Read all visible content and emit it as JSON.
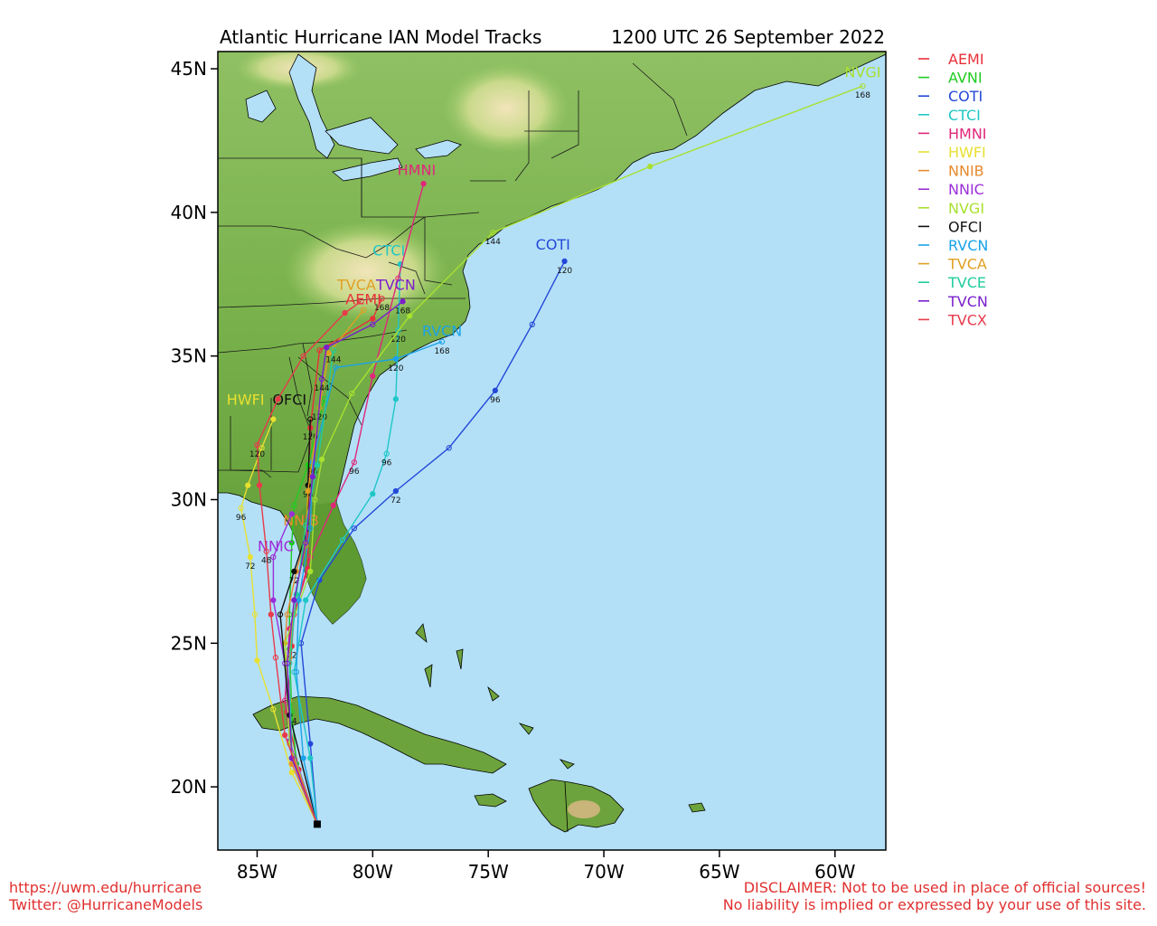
{
  "header": {
    "title": "Atlantic Hurricane IAN Model Tracks",
    "timestamp": "1200 UTC 26 September 2022"
  },
  "footer": {
    "url": "https://uwm.edu/hurricane",
    "twitter": "Twitter: @HurricaneModels",
    "disclaimer_line1": "DISCLAIMER: Not to be used in place of official sources!",
    "disclaimer_line2": "No liability is implied or expressed by your use of this site."
  },
  "colors": {
    "ocean": "#b3e0f7",
    "land": "#6fa53f",
    "border": "#000000",
    "footer_text": "#e03030"
  },
  "chart_data": {
    "type": "scatter",
    "xlim": [
      -86.7,
      -57.8
    ],
    "ylim": [
      17.8,
      45.6
    ],
    "x_ticks": [
      {
        "value": -85,
        "label": "85W"
      },
      {
        "value": -80,
        "label": "80W"
      },
      {
        "value": -75,
        "label": "75W"
      },
      {
        "value": -70,
        "label": "70W"
      },
      {
        "value": -65,
        "label": "65W"
      },
      {
        "value": -60,
        "label": "60W"
      }
    ],
    "y_ticks": [
      {
        "value": 20,
        "label": "20N"
      },
      {
        "value": 25,
        "label": "25N"
      },
      {
        "value": 30,
        "label": "30N"
      },
      {
        "value": 35,
        "label": "35N"
      },
      {
        "value": 40,
        "label": "40N"
      },
      {
        "value": 45,
        "label": "45N"
      }
    ],
    "origin": {
      "lon": -82.4,
      "lat": 18.7
    },
    "legend_position": "right",
    "series": [
      {
        "name": "AEMI",
        "color": "#e8303a",
        "label_lon": -80.4,
        "label_lat": 36.8,
        "points": [
          [
            -82.4,
            18.7
          ],
          [
            -83.2,
            20.6
          ],
          [
            -83.7,
            22.6
          ],
          [
            -83.5,
            24.9
          ],
          [
            -83.4,
            26.0
          ],
          [
            -82.8,
            27.6
          ],
          [
            -82.8,
            29.4
          ],
          [
            -82.7,
            32.5
          ],
          [
            -82.3,
            35.2
          ],
          [
            -80.0,
            36.3
          ],
          [
            -79.6,
            37.0
          ]
        ],
        "labels": [
          [
            -83.5,
            24.9,
            "72"
          ],
          [
            -82.7,
            32.5,
            "120"
          ],
          [
            -79.6,
            37.0,
            "168"
          ]
        ]
      },
      {
        "name": "AVNI",
        "color": "#1fcc1f",
        "label_lon": null,
        "label_lat": null,
        "points": [
          [
            -82.4,
            18.7
          ],
          [
            -83.3,
            20.8
          ],
          [
            -83.5,
            22.6
          ],
          [
            -83.6,
            24.8
          ],
          [
            -83.6,
            26.0
          ],
          [
            -83.5,
            28.5
          ],
          [
            -83.4,
            29.8
          ],
          [
            -82.8,
            31.2
          ],
          [
            -82.1,
            33.5
          ]
        ],
        "labels": [
          [
            -83.5,
            22.6,
            "24"
          ]
        ]
      },
      {
        "name": "COTI",
        "color": "#2448d8",
        "label_lon": -72.2,
        "label_lat": 38.7,
        "points": [
          [
            -82.4,
            18.7
          ],
          [
            -82.7,
            21.5
          ],
          [
            -83.1,
            25.0
          ],
          [
            -82.3,
            27.2
          ],
          [
            -80.8,
            29.0
          ],
          [
            -79.0,
            30.3
          ],
          [
            -76.7,
            31.8
          ],
          [
            -74.7,
            33.8
          ],
          [
            -73.1,
            36.1
          ],
          [
            -71.7,
            38.3
          ]
        ],
        "labels": [
          [
            -79.0,
            30.3,
            "72"
          ],
          [
            -74.7,
            33.8,
            "96"
          ],
          [
            -71.7,
            38.3,
            "120"
          ]
        ]
      },
      {
        "name": "CTCI",
        "color": "#1fc7c7",
        "label_lon": -79.3,
        "label_lat": 38.5,
        "points": [
          [
            -82.4,
            18.7
          ],
          [
            -82.7,
            21.0
          ],
          [
            -83.4,
            24.0
          ],
          [
            -82.9,
            26.5
          ],
          [
            -81.3,
            28.6
          ],
          [
            -80.0,
            30.2
          ],
          [
            -79.4,
            31.6
          ],
          [
            -79.0,
            33.5
          ],
          [
            -78.9,
            35.9
          ],
          [
            -78.8,
            38.2
          ]
        ],
        "labels": [
          [
            -79.4,
            31.6,
            "96"
          ],
          [
            -78.9,
            35.9,
            "120"
          ]
        ]
      },
      {
        "name": "HMNI",
        "color": "#e0277a",
        "label_lon": -78.1,
        "label_lat": 41.3,
        "points": [
          [
            -82.4,
            18.7
          ],
          [
            -83.4,
            20.8
          ],
          [
            -83.8,
            23.0
          ],
          [
            -83.6,
            25.5
          ],
          [
            -82.7,
            28.0
          ],
          [
            -81.7,
            29.8
          ],
          [
            -80.8,
            31.3
          ],
          [
            -80.0,
            34.3
          ],
          [
            -78.9,
            37.7
          ],
          [
            -77.8,
            41.0
          ]
        ],
        "labels": [
          [
            -80.8,
            31.3,
            "96"
          ]
        ]
      },
      {
        "name": "HWFI",
        "color": "#e8e030",
        "label_lon": -85.5,
        "label_lat": 33.3,
        "points": [
          [
            -82.4,
            18.7
          ],
          [
            -83.5,
            20.5
          ],
          [
            -84.3,
            22.7
          ],
          [
            -85.0,
            24.4
          ],
          [
            -85.1,
            26.0
          ],
          [
            -85.3,
            28.0
          ],
          [
            -85.7,
            29.7
          ],
          [
            -85.4,
            30.5
          ],
          [
            -84.8,
            31.8
          ],
          [
            -84.3,
            32.8
          ]
        ],
        "labels": [
          [
            -85.3,
            28.0,
            "72"
          ],
          [
            -85.7,
            29.7,
            "96"
          ]
        ]
      },
      {
        "name": "NNIB",
        "color": "#e68a2e",
        "label_lon": -83.1,
        "label_lat": 29.1,
        "points": [
          [
            -82.4,
            18.7
          ],
          [
            -83.5,
            20.8
          ],
          [
            -83.6,
            23.0
          ],
          [
            -83.8,
            25.0
          ],
          [
            -83.7,
            26.0
          ],
          [
            -83.3,
            27.5
          ],
          [
            -82.8,
            29.0
          ]
        ],
        "labels": []
      },
      {
        "name": "NNIC",
        "color": "#9b2ed8",
        "label_lon": -84.2,
        "label_lat": 28.2,
        "points": [
          [
            -82.4,
            18.7
          ],
          [
            -83.6,
            21.6
          ],
          [
            -83.8,
            24.3
          ],
          [
            -84.3,
            26.5
          ],
          [
            -84.3,
            28.0
          ],
          [
            -83.5,
            29.5
          ]
        ],
        "labels": []
      },
      {
        "name": "NVGI",
        "color": "#a8e030",
        "label_lon": -58.8,
        "label_lat": 44.7,
        "points": [
          [
            -82.4,
            18.7
          ],
          [
            -83.6,
            21.5
          ],
          [
            -83.8,
            25.0
          ],
          [
            -82.7,
            27.5
          ],
          [
            -82.5,
            30.0
          ],
          [
            -82.2,
            31.4
          ],
          [
            -80.9,
            33.7
          ],
          [
            -78.4,
            36.4
          ],
          [
            -74.8,
            39.3
          ],
          [
            -68.0,
            41.6
          ],
          [
            -58.8,
            44.4
          ]
        ],
        "labels": [
          [
            -74.8,
            39.3,
            "144"
          ],
          [
            -58.8,
            44.4,
            "168"
          ]
        ]
      },
      {
        "name": "OFCI",
        "color": "#111111",
        "label_lon": -83.6,
        "label_lat": 33.3,
        "points": [
          [
            -82.4,
            18.7
          ],
          [
            -83.6,
            22.5
          ],
          [
            -84.0,
            26.0
          ],
          [
            -83.4,
            27.5
          ],
          [
            -82.8,
            29.0
          ],
          [
            -82.8,
            30.5
          ],
          [
            -82.7,
            32.8
          ]
        ],
        "labels": [
          [
            -83.4,
            27.5,
            "72"
          ],
          [
            -82.8,
            30.5,
            "96"
          ]
        ]
      },
      {
        "name": "RVCN",
        "color": "#1aa3e8",
        "label_lon": -77.0,
        "label_lat": 35.7,
        "points": [
          [
            -82.4,
            18.7
          ],
          [
            -83.0,
            21.0
          ],
          [
            -83.3,
            24.0
          ],
          [
            -83.2,
            26.5
          ],
          [
            -82.7,
            29.0
          ],
          [
            -82.6,
            31.3
          ],
          [
            -81.6,
            34.6
          ],
          [
            -79.0,
            34.9
          ],
          [
            -77.0,
            35.5
          ]
        ],
        "labels": [
          [
            -82.6,
            31.3,
            "96"
          ],
          [
            -79.0,
            34.9,
            "120"
          ],
          [
            -77.0,
            35.5,
            "168"
          ]
        ]
      },
      {
        "name": "TVCA",
        "color": "#e0a020",
        "label_lon": -80.7,
        "label_lat": 37.3,
        "points": [
          [
            -82.4,
            18.7
          ],
          [
            -83.5,
            21.0
          ],
          [
            -83.6,
            24.5
          ],
          [
            -83.4,
            26.5
          ],
          [
            -82.9,
            28.4
          ],
          [
            -82.8,
            30.3
          ],
          [
            -82.3,
            33.2
          ],
          [
            -81.9,
            35.1
          ],
          [
            -80.4,
            36.6
          ]
        ],
        "labels": [
          [
            -82.3,
            33.2,
            "120"
          ]
        ]
      },
      {
        "name": "TVCE",
        "color": "#1fcc9e",
        "label_lon": null,
        "label_lat": null,
        "points": [
          [
            -82.4,
            18.7
          ],
          [
            -83.5,
            21.0
          ],
          [
            -83.6,
            24.3
          ],
          [
            -83.3,
            26.7
          ],
          [
            -82.9,
            29.1
          ],
          [
            -82.4,
            31.2
          ],
          [
            -81.7,
            35.2
          ]
        ],
        "labels": [
          [
            -81.7,
            35.2,
            "144"
          ]
        ]
      },
      {
        "name": "TVCN",
        "color": "#7a1fcc",
        "label_lon": -79.0,
        "label_lat": 37.3,
        "points": [
          [
            -82.4,
            18.7
          ],
          [
            -83.5,
            21.0
          ],
          [
            -83.7,
            24.3
          ],
          [
            -83.4,
            26.5
          ],
          [
            -82.9,
            28.5
          ],
          [
            -82.6,
            30.8
          ],
          [
            -82.2,
            34.2
          ],
          [
            -82.0,
            35.3
          ],
          [
            -80.0,
            36.1
          ],
          [
            -78.7,
            36.9
          ]
        ],
        "labels": [
          [
            -82.2,
            34.2,
            "144"
          ],
          [
            -78.7,
            36.9,
            "168"
          ]
        ]
      },
      {
        "name": "TVCX",
        "color": "#e83a4a",
        "label_lon": null,
        "label_lat": null,
        "points": [
          [
            -82.4,
            18.7
          ],
          [
            -83.8,
            21.8
          ],
          [
            -84.2,
            24.5
          ],
          [
            -84.4,
            26.0
          ],
          [
            -84.6,
            28.2
          ],
          [
            -84.9,
            30.5
          ],
          [
            -85.0,
            31.9
          ],
          [
            -84.1,
            33.5
          ],
          [
            -83.0,
            35.0
          ],
          [
            -81.2,
            36.5
          ],
          [
            -80.5,
            36.9
          ]
        ],
        "labels": [
          [
            -84.6,
            28.2,
            "48"
          ],
          [
            -85.0,
            31.9,
            "120"
          ]
        ]
      }
    ]
  }
}
